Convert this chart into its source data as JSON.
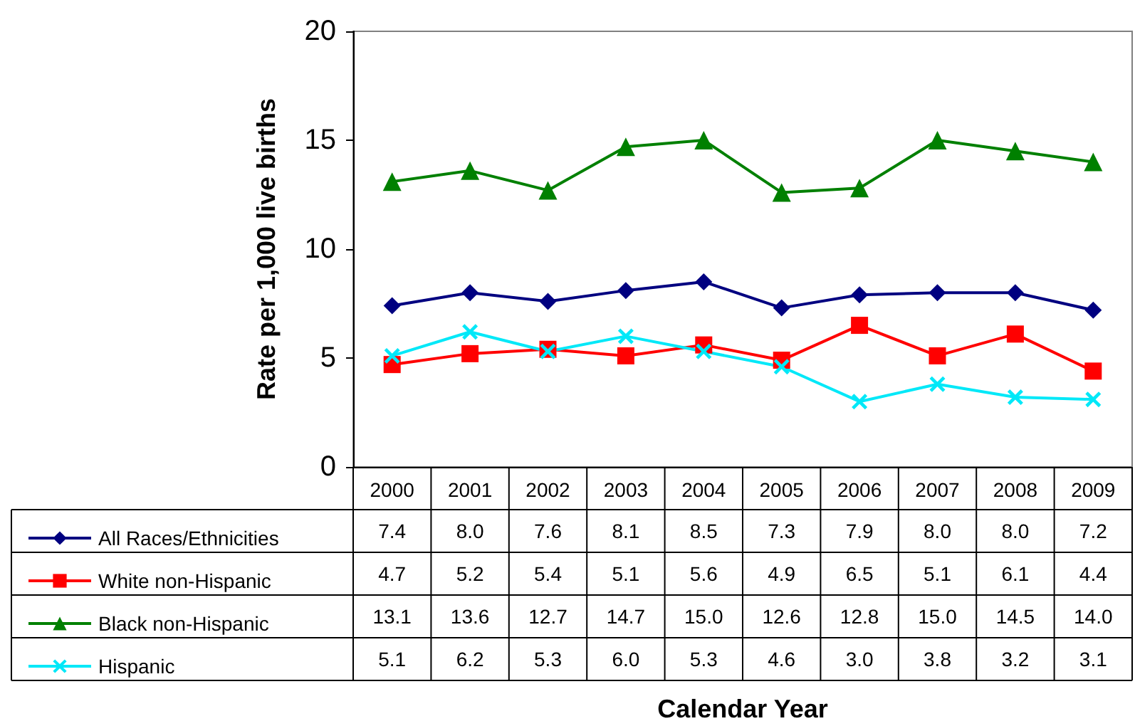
{
  "chart_data": {
    "type": "line",
    "ylabel": "Rate per 1,000 live births",
    "annotations": [
      "Calendar Year"
    ],
    "categories": [
      "2000",
      "2001",
      "2002",
      "2003",
      "2004",
      "2005",
      "2006",
      "2007",
      "2008",
      "2009"
    ],
    "series": [
      {
        "name": "All Races/Ethnicities",
        "color": "#000080",
        "marker": "diamond",
        "values": [
          7.4,
          8.0,
          7.6,
          8.1,
          8.5,
          7.3,
          7.9,
          8.0,
          8.0,
          7.2
        ],
        "value_labels": [
          "7.4",
          "8.0",
          "7.6",
          "8.1",
          "8.5",
          "7.3",
          "7.9",
          "8.0",
          "8.0",
          "7.2"
        ]
      },
      {
        "name": "White non-Hispanic",
        "color": "#ff0000",
        "marker": "square",
        "values": [
          4.7,
          5.2,
          5.4,
          5.1,
          5.6,
          4.9,
          6.5,
          5.1,
          6.1,
          4.4
        ],
        "value_labels": [
          "4.7",
          "5.2",
          "5.4",
          "5.1",
          "5.6",
          "4.9",
          "6.5",
          "5.1",
          "6.1",
          "4.4"
        ]
      },
      {
        "name": "Black non-Hispanic",
        "color": "#008000",
        "marker": "triangle",
        "values": [
          13.1,
          13.6,
          12.7,
          14.7,
          15.0,
          12.6,
          12.8,
          15.0,
          14.5,
          14.0
        ],
        "value_labels": [
          "13.1",
          "13.6",
          "12.7",
          "14.7",
          "15.0",
          "12.6",
          "12.8",
          "15.0",
          "14.5",
          "14.0"
        ]
      },
      {
        "name": "Hispanic",
        "color": "#00e8f8",
        "marker": "cross",
        "values": [
          5.1,
          6.2,
          5.3,
          6.0,
          5.3,
          4.6,
          3.0,
          3.8,
          3.2,
          3.1
        ],
        "value_labels": [
          "5.1",
          "6.2",
          "5.3",
          "6.0",
          "5.3",
          "4.6",
          "3.0",
          "3.8",
          "3.2",
          "3.1"
        ]
      }
    ],
    "ylim": [
      0,
      20
    ],
    "yticks": [
      0,
      5,
      10,
      15,
      20
    ],
    "grid": false,
    "legend": "bottom left"
  }
}
